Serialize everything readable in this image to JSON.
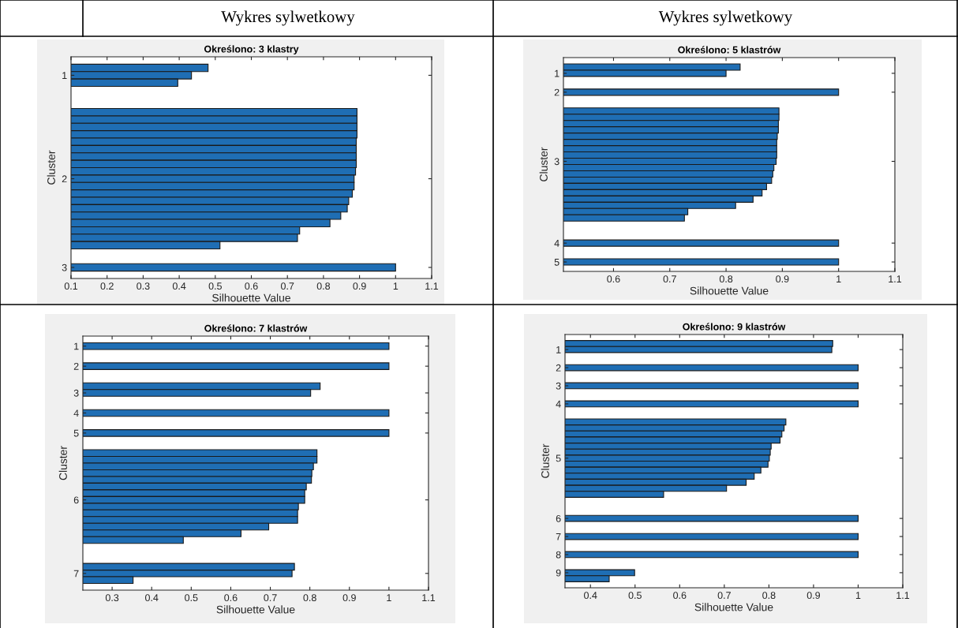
{
  "chart_data": [
    {
      "type": "bar",
      "orientation": "horizontal",
      "subtitle": "Wykres sylwetkowy",
      "title": "Określono: 3 klastry",
      "xlabel": "Silhouette Value",
      "ylabel": "Cluster",
      "color": "#1f6eb4",
      "categories": [
        null,
        "1",
        null,
        null,
        null,
        null,
        null,
        null,
        null,
        null,
        null,
        null,
        null,
        null,
        null,
        "2",
        null,
        null,
        null,
        null,
        null,
        null,
        null,
        null,
        null,
        null,
        null,
        "3"
      ],
      "values": [
        0.48,
        0.434,
        0.396,
        null,
        null,
        null,
        0.893,
        0.893,
        0.893,
        0.893,
        0.891,
        0.891,
        0.891,
        0.891,
        0.889,
        0.885,
        0.885,
        0.88,
        0.87,
        0.866,
        0.848,
        0.818,
        0.734,
        0.728,
        0.513,
        null,
        null,
        1.0
      ],
      "xlim": [
        0.1,
        1.1
      ],
      "xticks": [
        0.1,
        0.2,
        0.3,
        0.4,
        0.5,
        0.6,
        0.7,
        0.8,
        0.9,
        1,
        1.1
      ]
    },
    {
      "type": "bar",
      "orientation": "horizontal",
      "subtitle": "Wykres sylwetkowy",
      "title": "Określono: 5 klastrów",
      "xlabel": "Silhouette Value",
      "ylabel": "Cluster",
      "color": "#1f6eb4",
      "categories": [
        null,
        "1",
        null,
        null,
        "2",
        null,
        null,
        null,
        null,
        null,
        null,
        null,
        null,
        null,
        null,
        "3",
        null,
        null,
        null,
        null,
        null,
        null,
        null,
        null,
        null,
        null,
        null,
        null,
        "4",
        null,
        null,
        "5"
      ],
      "values": [
        0.825,
        0.8,
        null,
        null,
        1.0,
        null,
        null,
        0.894,
        0.894,
        0.893,
        0.893,
        0.891,
        0.89,
        0.89,
        0.89,
        0.889,
        0.885,
        0.883,
        0.881,
        0.872,
        0.864,
        0.848,
        0.817,
        0.732,
        0.726,
        null,
        null,
        null,
        1.0,
        null,
        null,
        1.0
      ],
      "xlim": [
        0.511,
        1.1
      ],
      "xticks": [
        0.6,
        0.7,
        0.8,
        0.9,
        1,
        1.1
      ]
    },
    {
      "type": "bar",
      "orientation": "horizontal",
      "title": "Określono: 7 klastrów",
      "xlabel": "Silhouette Value",
      "ylabel": "Cluster",
      "color": "#1f6eb4",
      "categories": [
        "1",
        null,
        null,
        "2",
        null,
        null,
        null,
        "3",
        null,
        null,
        "4",
        null,
        null,
        "5",
        null,
        null,
        null,
        null,
        null,
        null,
        null,
        null,
        null,
        "6",
        null,
        null,
        null,
        null,
        null,
        null,
        null,
        null,
        null,
        null,
        "7",
        null
      ],
      "values": [
        1.0,
        null,
        null,
        1.0,
        null,
        null,
        0.826,
        0.802,
        null,
        null,
        1.0,
        null,
        null,
        1.0,
        null,
        null,
        0.818,
        0.818,
        0.809,
        0.805,
        0.804,
        0.791,
        0.787,
        0.787,
        0.771,
        0.769,
        0.769,
        0.696,
        0.626,
        0.48,
        null,
        null,
        null,
        0.761,
        0.755,
        0.353
      ],
      "xlim": [
        0.226,
        1.1
      ],
      "xticks": [
        0.3,
        0.4,
        0.5,
        0.6,
        0.7,
        0.8,
        0.9,
        1,
        1.1
      ]
    },
    {
      "type": "bar",
      "orientation": "horizontal",
      "title": "Określono: 9 klastrów",
      "xlabel": "Silhouette Value",
      "ylabel": "Cluster",
      "color": "#1f6eb4",
      "categories": [
        null,
        "1",
        null,
        null,
        "2",
        null,
        null,
        "3",
        null,
        null,
        "4",
        null,
        null,
        null,
        null,
        null,
        null,
        null,
        null,
        "5",
        null,
        null,
        null,
        null,
        null,
        null,
        null,
        null,
        null,
        "6",
        null,
        null,
        "7",
        null,
        null,
        "8",
        null,
        null,
        "9",
        null
      ],
      "values": [
        0.943,
        0.941,
        null,
        null,
        1.0,
        null,
        null,
        1.0,
        null,
        null,
        1.0,
        null,
        null,
        0.838,
        0.834,
        0.829,
        0.825,
        0.805,
        0.803,
        0.801,
        0.798,
        0.782,
        0.767,
        0.749,
        0.705,
        0.564,
        null,
        null,
        null,
        1.0,
        null,
        null,
        1.0,
        null,
        null,
        1.0,
        null,
        null,
        0.499,
        0.442
      ],
      "xlim": [
        0.343,
        1.1
      ],
      "xticks": [
        0.4,
        0.5,
        0.6,
        0.7,
        0.8,
        0.9,
        1,
        1.1
      ]
    }
  ]
}
